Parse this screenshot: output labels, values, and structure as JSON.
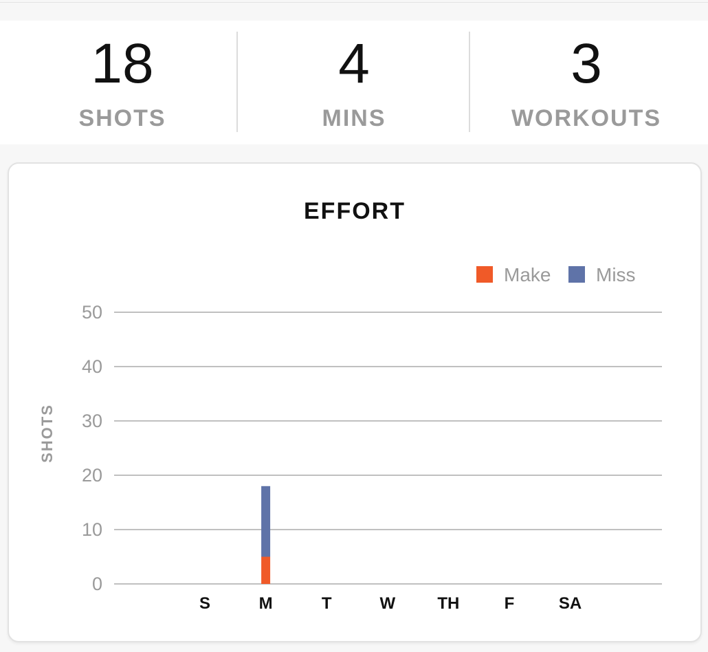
{
  "stats": [
    {
      "value": "18",
      "label": "SHOTS"
    },
    {
      "value": "4",
      "label": "MINS"
    },
    {
      "value": "3",
      "label": "WORKOUTS"
    }
  ],
  "chart_data": {
    "type": "bar",
    "stacked": true,
    "title": "EFFORT",
    "xlabel": "",
    "ylabel": "SHOTS",
    "categories": [
      "S",
      "M",
      "T",
      "W",
      "TH",
      "F",
      "SA"
    ],
    "series": [
      {
        "name": "Make",
        "color": "#f05a28",
        "values": [
          0,
          5,
          0,
          0,
          0,
          0,
          0
        ]
      },
      {
        "name": "Miss",
        "color": "#5f73a8",
        "values": [
          0,
          13,
          0,
          0,
          0,
          0,
          0
        ]
      }
    ],
    "ylim": [
      0,
      50
    ],
    "yticks": [
      0,
      10,
      20,
      30,
      40,
      50
    ],
    "grid": true,
    "legend": "top-right"
  }
}
